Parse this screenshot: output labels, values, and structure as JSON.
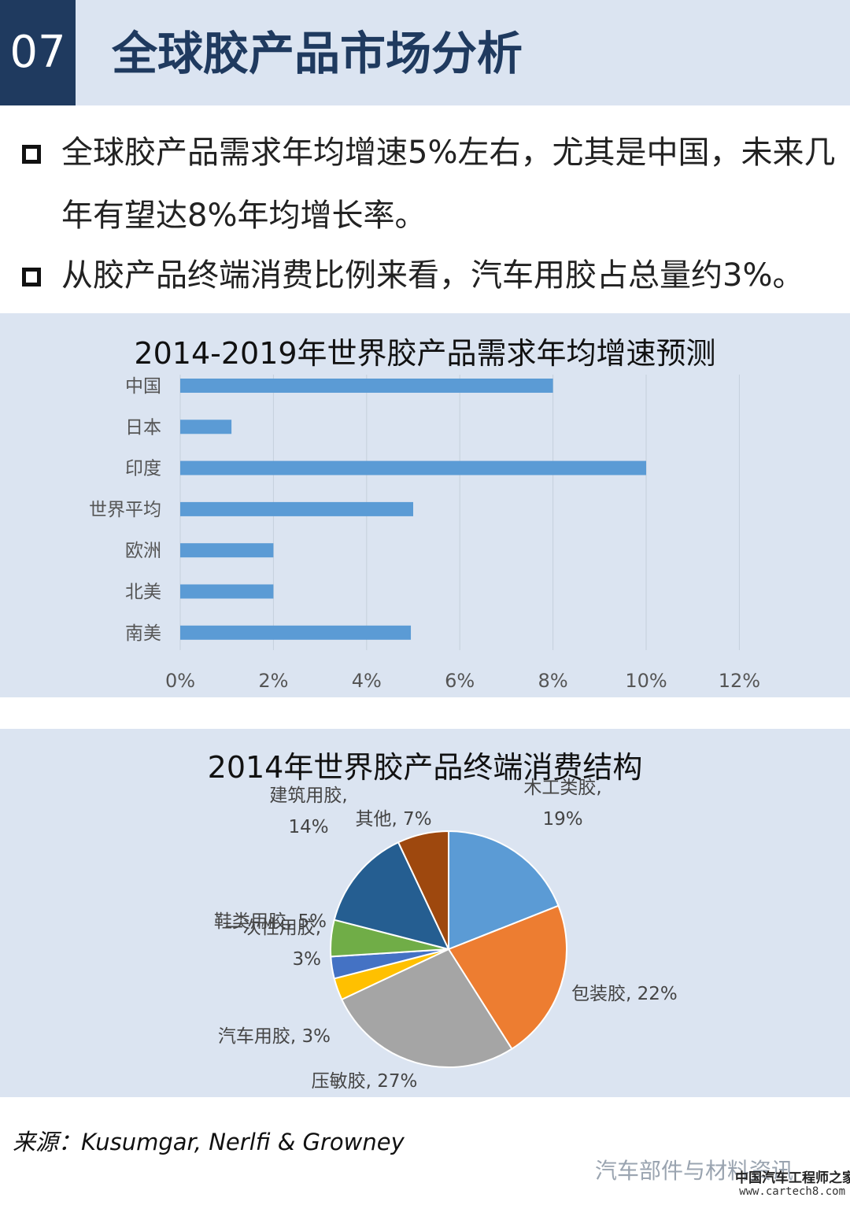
{
  "header": {
    "number": "07",
    "title": "全球胶产品市场分析"
  },
  "bullets": [
    "全球胶产品需求年均增速5%左右，尤其是中国，未来几年有望达8%年均增长率。",
    "从胶产品终端消费比例来看，汽车用胶占总量约3%。"
  ],
  "chart_data": [
    {
      "type": "bar",
      "orientation": "horizontal",
      "title": "2014-2019年世界胶产品需求年均增速预测",
      "categories": [
        "中国",
        "日本",
        "印度",
        "世界平均",
        "欧洲",
        "北美",
        "南美"
      ],
      "values": [
        8,
        1.1,
        10,
        5,
        2,
        2,
        4.95
      ],
      "xlim": [
        0,
        12
      ],
      "xticks": [
        "0%",
        "2%",
        "4%",
        "6%",
        "8%",
        "10%",
        "12%"
      ],
      "grid": true,
      "color": "#5b9bd5"
    },
    {
      "type": "pie",
      "title": "2014年世界胶产品终端消费结构",
      "slices": [
        {
          "name": "木工类胶",
          "value": 19,
          "label_lines": [
            "木工类胶,",
            "19%"
          ],
          "color": "#5b9bd5"
        },
        {
          "name": "包装胶",
          "value": 22,
          "label_lines": [
            "包装胶, 22%"
          ],
          "color": "#ed7d31"
        },
        {
          "name": "压敏胶",
          "value": 27,
          "label_lines": [
            "压敏胶, 27%"
          ],
          "color": "#a5a5a5"
        },
        {
          "name": "汽车用胶",
          "value": 3,
          "label_lines": [
            "汽车用胶, 3%"
          ],
          "color": "#ffc000"
        },
        {
          "name": "一次性用胶",
          "value": 3,
          "label_lines": [
            "一次性用胶,",
            "3%"
          ],
          "color": "#4472c4"
        },
        {
          "name": "鞋类用胶",
          "value": 5,
          "label_lines": [
            "鞋类用胶, 5%"
          ],
          "color": "#70ad47"
        },
        {
          "name": "建筑用胶",
          "value": 14,
          "label_lines": [
            "建筑用胶,",
            "14%"
          ],
          "color": "#255e91"
        },
        {
          "name": "其他",
          "value": 7,
          "label_lines": [
            "其他, 7%"
          ],
          "color": "#9e480e"
        }
      ]
    }
  ],
  "footer": {
    "source": "来源：Kusumgar, Nerlfi & Growney",
    "watermark_brand": "汽车部件与材料资讯",
    "watermark_site": "中国汽车工程师之家",
    "watermark_url": "www.cartech8.com"
  }
}
